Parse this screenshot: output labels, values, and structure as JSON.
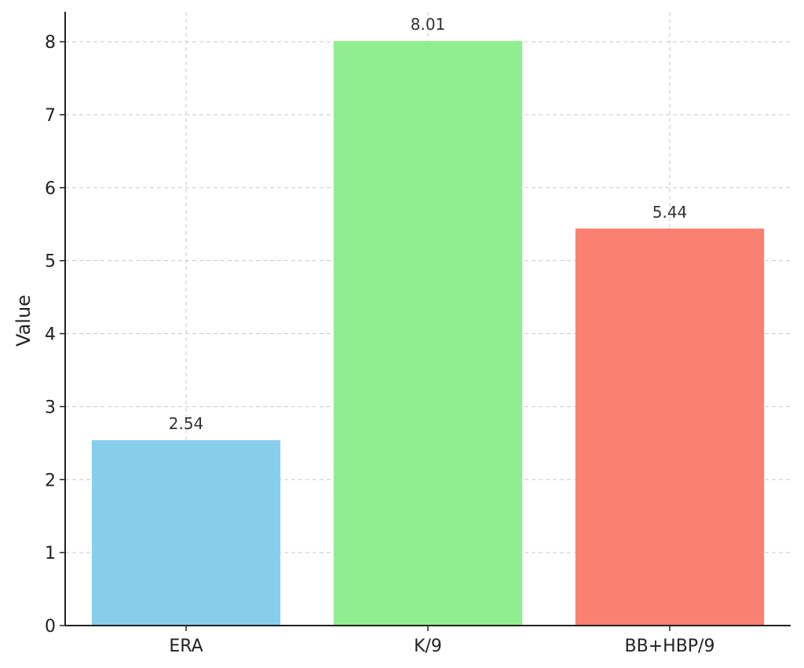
{
  "chart_data": {
    "type": "bar",
    "categories": [
      "ERA",
      "K/9",
      "BB+HBP/9"
    ],
    "values": [
      2.54,
      8.01,
      5.44
    ],
    "data_labels": [
      "2.54",
      "8.01",
      "5.44"
    ],
    "colors": [
      "#87ceeb",
      "#90ee90",
      "#fa8072"
    ],
    "title": "",
    "xlabel": "",
    "ylabel": "Value",
    "ylim": [
      0,
      8.41
    ],
    "yticks": [
      0,
      1,
      2,
      3,
      4,
      5,
      6,
      7,
      8
    ],
    "ytick_labels": [
      "0",
      "1",
      "2",
      "3",
      "4",
      "5",
      "6",
      "7",
      "8"
    ],
    "grid": true,
    "legend": "none"
  }
}
